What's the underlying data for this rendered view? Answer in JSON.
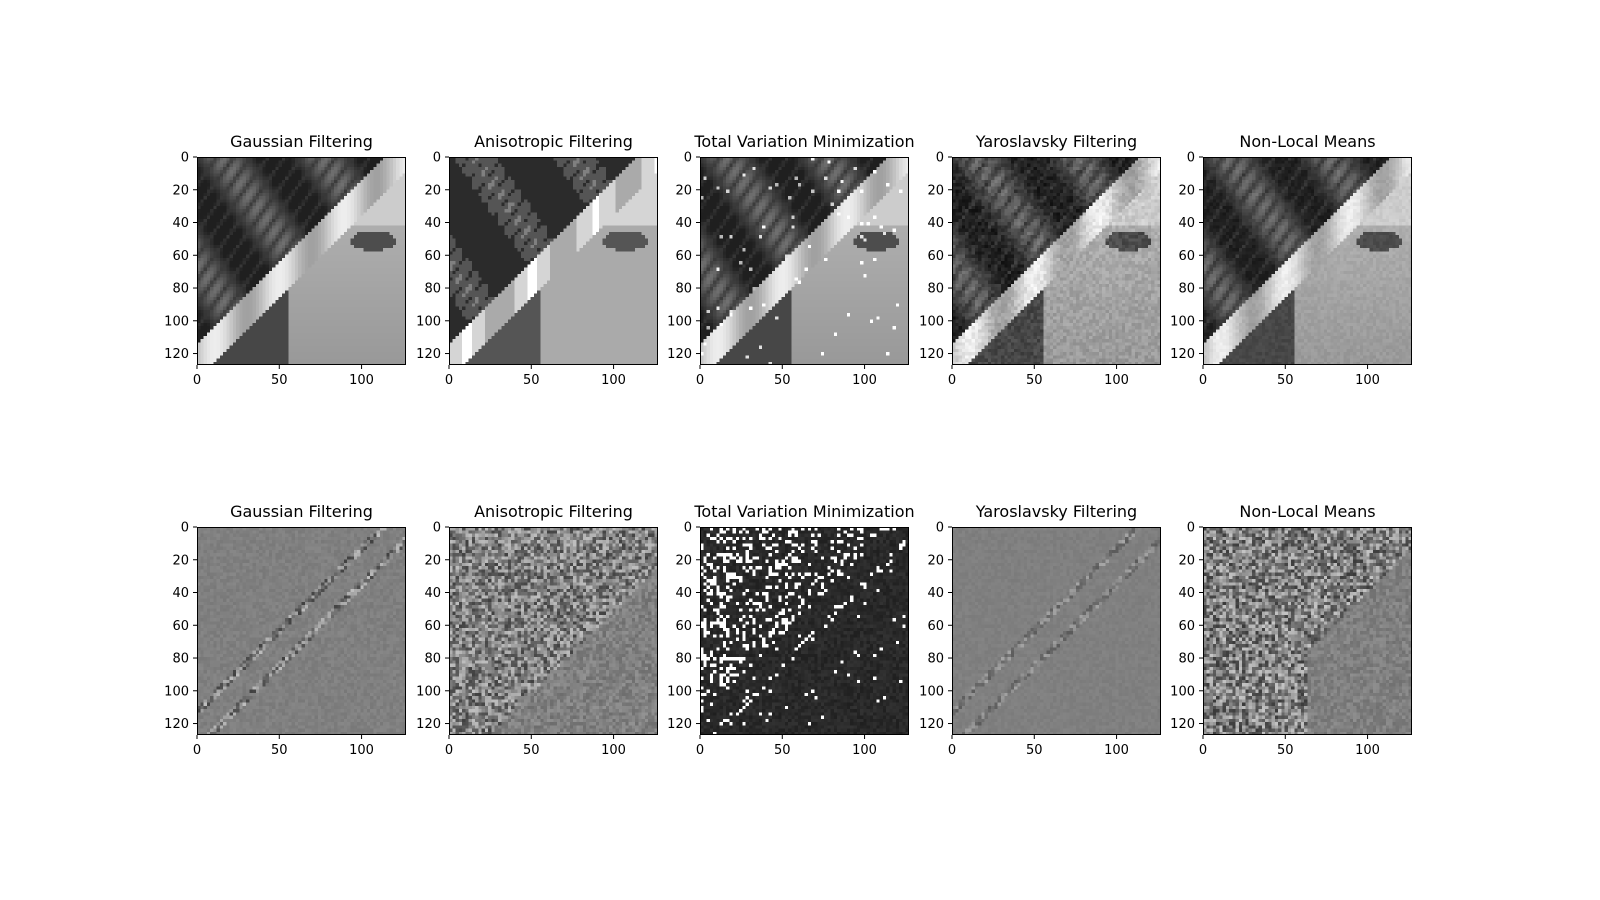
{
  "chart_data": [
    {
      "type": "heatmap",
      "row": "filtered",
      "title": "Gaussian Filtering",
      "style": "smooth",
      "xticks": [
        0,
        50,
        100
      ],
      "yticks": [
        0,
        20,
        40,
        60,
        80,
        100,
        120
      ],
      "xlim": [
        0,
        127
      ],
      "ylim": [
        127,
        0
      ]
    },
    {
      "type": "heatmap",
      "row": "filtered",
      "title": "Anisotropic Filtering",
      "style": "blocky",
      "xticks": [
        0,
        50,
        100
      ],
      "yticks": [
        0,
        20,
        40,
        60,
        80,
        100,
        120
      ],
      "xlim": [
        0,
        127
      ],
      "ylim": [
        127,
        0
      ]
    },
    {
      "type": "heatmap",
      "row": "filtered",
      "title": "Total Variation Minimization",
      "style": "speckled",
      "xticks": [
        0,
        50,
        100
      ],
      "yticks": [
        0,
        20,
        40,
        60,
        80,
        100,
        120
      ],
      "xlim": [
        0,
        127
      ],
      "ylim": [
        127,
        0
      ]
    },
    {
      "type": "heatmap",
      "row": "filtered",
      "title": "Yaroslavsky Filtering",
      "style": "textured",
      "xticks": [
        0,
        50,
        100
      ],
      "yticks": [
        0,
        20,
        40,
        60,
        80,
        100,
        120
      ],
      "xlim": [
        0,
        127
      ],
      "ylim": [
        127,
        0
      ]
    },
    {
      "type": "heatmap",
      "row": "filtered",
      "title": "Non-Local Means",
      "style": "sharp",
      "xticks": [
        0,
        50,
        100
      ],
      "yticks": [
        0,
        20,
        40,
        60,
        80,
        100,
        120
      ],
      "xlim": [
        0,
        127
      ],
      "ylim": [
        127,
        0
      ]
    },
    {
      "type": "heatmap",
      "row": "residual",
      "title": "Gaussian Filtering",
      "style": "edge-residual",
      "xticks": [
        0,
        50,
        100
      ],
      "yticks": [
        0,
        20,
        40,
        60,
        80,
        100,
        120
      ],
      "xlim": [
        0,
        127
      ],
      "ylim": [
        127,
        0
      ]
    },
    {
      "type": "heatmap",
      "row": "residual",
      "title": "Anisotropic Filtering",
      "style": "noisy-residual",
      "xticks": [
        0,
        50,
        100
      ],
      "yticks": [
        0,
        20,
        40,
        60,
        80,
        100,
        120
      ],
      "xlim": [
        0,
        127
      ],
      "ylim": [
        127,
        0
      ]
    },
    {
      "type": "heatmap",
      "row": "residual",
      "title": "Total Variation Minimization",
      "style": "dark-residual",
      "xticks": [
        0,
        50,
        100
      ],
      "yticks": [
        0,
        20,
        40,
        60,
        80,
        100,
        120
      ],
      "xlim": [
        0,
        127
      ],
      "ylim": [
        127,
        0
      ]
    },
    {
      "type": "heatmap",
      "row": "residual",
      "title": "Yaroslavsky Filtering",
      "style": "faint-residual",
      "xticks": [
        0,
        50,
        100
      ],
      "yticks": [
        0,
        20,
        40,
        60,
        80,
        100,
        120
      ],
      "xlim": [
        0,
        127
      ],
      "ylim": [
        127,
        0
      ]
    },
    {
      "type": "heatmap",
      "row": "residual",
      "title": "Non-Local Means",
      "style": "grain-residual",
      "xticks": [
        0,
        50,
        100
      ],
      "yticks": [
        0,
        20,
        40,
        60,
        80,
        100,
        120
      ],
      "xlim": [
        0,
        127
      ],
      "ylim": [
        127,
        0
      ]
    }
  ],
  "colormap": "gray",
  "background_color": "#ffffff",
  "axis_color": "#000000"
}
